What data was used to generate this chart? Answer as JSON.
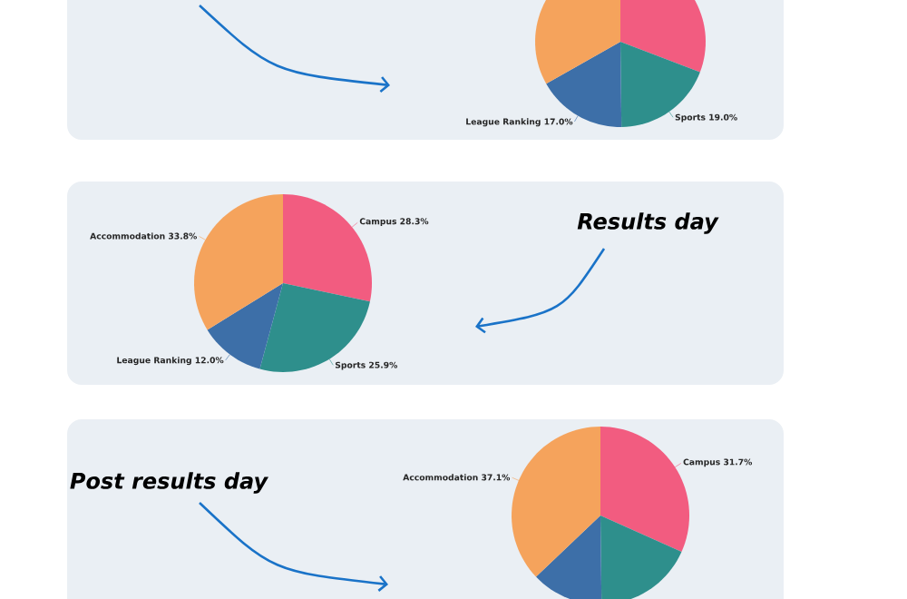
{
  "chart_data": [
    {
      "type": "pie",
      "categories": [
        null,
        "Sports",
        "League Ranking",
        null
      ],
      "values": [
        30.8,
        19.0,
        17.0,
        33.2
      ],
      "value_labels": [
        null,
        "19.0%",
        "17.0%",
        null
      ],
      "colors": [
        "#f25c80",
        "#2e8f8c",
        "#3d6fa8",
        "#f5a35c"
      ]
    },
    {
      "type": "pie",
      "title": "Results day",
      "categories": [
        "Campus",
        "Sports",
        "League Ranking",
        "Accommodation"
      ],
      "values": [
        28.3,
        25.9,
        12.0,
        33.8
      ],
      "value_labels": [
        "28.3%",
        "25.9%",
        "12.0%",
        "33.8%"
      ],
      "colors": [
        "#f25c80",
        "#2e8f8c",
        "#3d6fa8",
        "#f5a35c"
      ]
    },
    {
      "type": "pie",
      "title": "Post results day",
      "categories": [
        "Campus",
        null,
        null,
        "Accommodation"
      ],
      "values": [
        31.7,
        18.1,
        13.1,
        37.1
      ],
      "value_labels": [
        "31.7%",
        null,
        null,
        "37.1%"
      ],
      "colors": [
        "#f25c80",
        "#2e8f8c",
        "#3d6fa8",
        "#f5a35c"
      ]
    }
  ]
}
